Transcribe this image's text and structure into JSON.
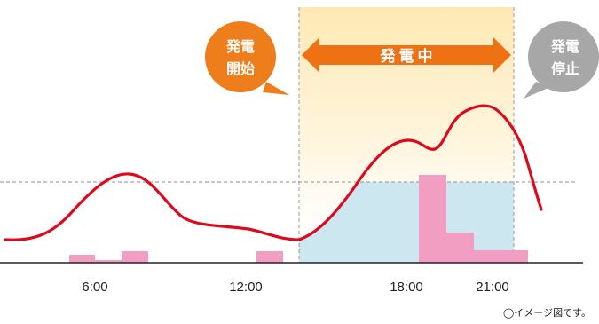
{
  "colors": {
    "curve": "#dd0a1e",
    "bar": "#f19ec2",
    "area": "#cde7f0",
    "band_top": "#fde9b4",
    "start_bubble": "#ee7d1b",
    "arrow": "#ee7113",
    "stop_bubble": "#a7a7a7"
  },
  "bubbles": {
    "start": {
      "line1": "発電",
      "line2": "開始"
    },
    "stop": {
      "line1": "発電",
      "line2": "停止"
    }
  },
  "arrow_label": "発電中",
  "note": "◯イメージ図です。",
  "chart_data": {
    "type": "diagram",
    "x_ticks": [
      "6:00",
      "12:00",
      "18:00",
      "21:00"
    ]
  }
}
